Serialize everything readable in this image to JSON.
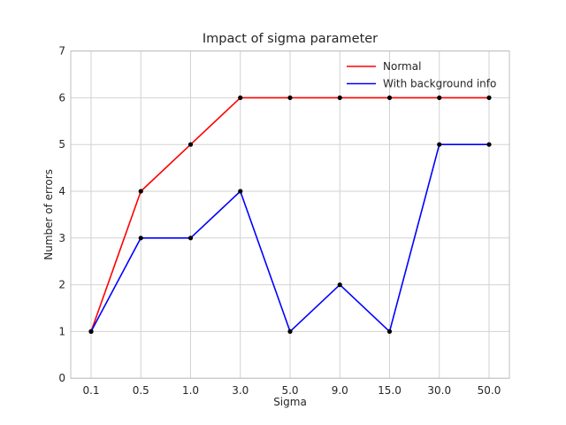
{
  "chart_data": {
    "type": "line",
    "title": "Impact of sigma parameter",
    "xlabel": "Sigma",
    "ylabel": "Number of errors",
    "categories": [
      "0.1",
      "0.5",
      "1.0",
      "3.0",
      "5.0",
      "9.0",
      "15.0",
      "30.0",
      "50.0"
    ],
    "ylim": [
      0,
      7
    ],
    "yticks": [
      "0",
      "1",
      "2",
      "3",
      "4",
      "5",
      "6",
      "7"
    ],
    "grid": true,
    "legend_position": "top-right",
    "series": [
      {
        "name": "Normal",
        "color": "#ff0000",
        "values": [
          1,
          4,
          5,
          6,
          6,
          6,
          6,
          6,
          6
        ]
      },
      {
        "name": "With background info",
        "color": "#0000ff",
        "values": [
          1,
          3,
          3,
          4,
          1,
          2,
          1,
          5,
          5
        ]
      }
    ],
    "marker_color": "#000000"
  }
}
